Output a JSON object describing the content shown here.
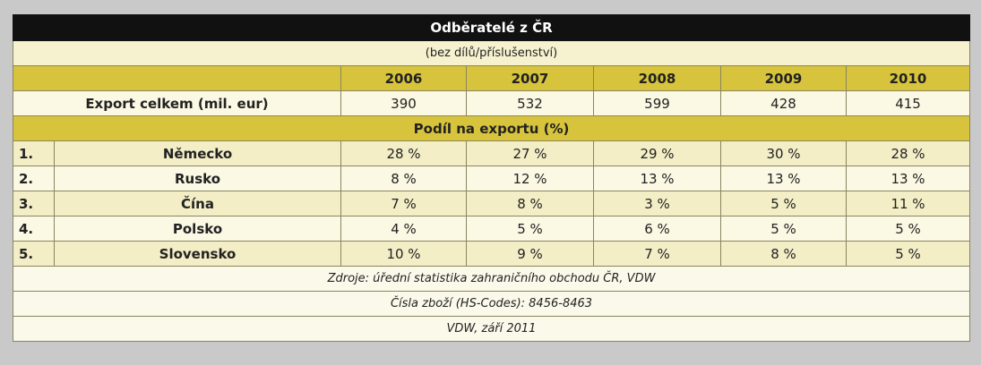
{
  "title": "Odběratelé z ČR",
  "subtitle": "(bez dílů/příslušenství)",
  "years": [
    "2006",
    "2007",
    "2008",
    "2009",
    "2010"
  ],
  "export": {
    "label": "Export celkem (mil. eur)",
    "values": [
      390,
      532,
      599,
      428,
      415
    ]
  },
  "share_heading": "Podíl na exportu (%)",
  "rows": [
    {
      "rank": "1.",
      "country": "Německo",
      "values": [
        "28 %",
        "27 %",
        "29 %",
        "30 %",
        "28 %"
      ]
    },
    {
      "rank": "2.",
      "country": "Rusko",
      "values": [
        "8 %",
        "12 %",
        "13 %",
        "13 %",
        "13 %"
      ]
    },
    {
      "rank": "3.",
      "country": "Čína",
      "values": [
        "7 %",
        "8 %",
        "3 %",
        "5 %",
        "11 %"
      ]
    },
    {
      "rank": "4.",
      "country": "Polsko",
      "values": [
        "4 %",
        "5 %",
        "6 %",
        "5 %",
        "5 %"
      ]
    },
    {
      "rank": "5.",
      "country": "Slovensko",
      "values": [
        "10 %",
        "9 %",
        "7 %",
        "8 %",
        "5 %"
      ]
    }
  ],
  "footer": [
    "Zdroje: úřední statistika zahraničního obchodu ČR, VDW",
    "Čísla zboží (HS-Codes): 8456-8463",
    "VDW, září 2011"
  ]
}
